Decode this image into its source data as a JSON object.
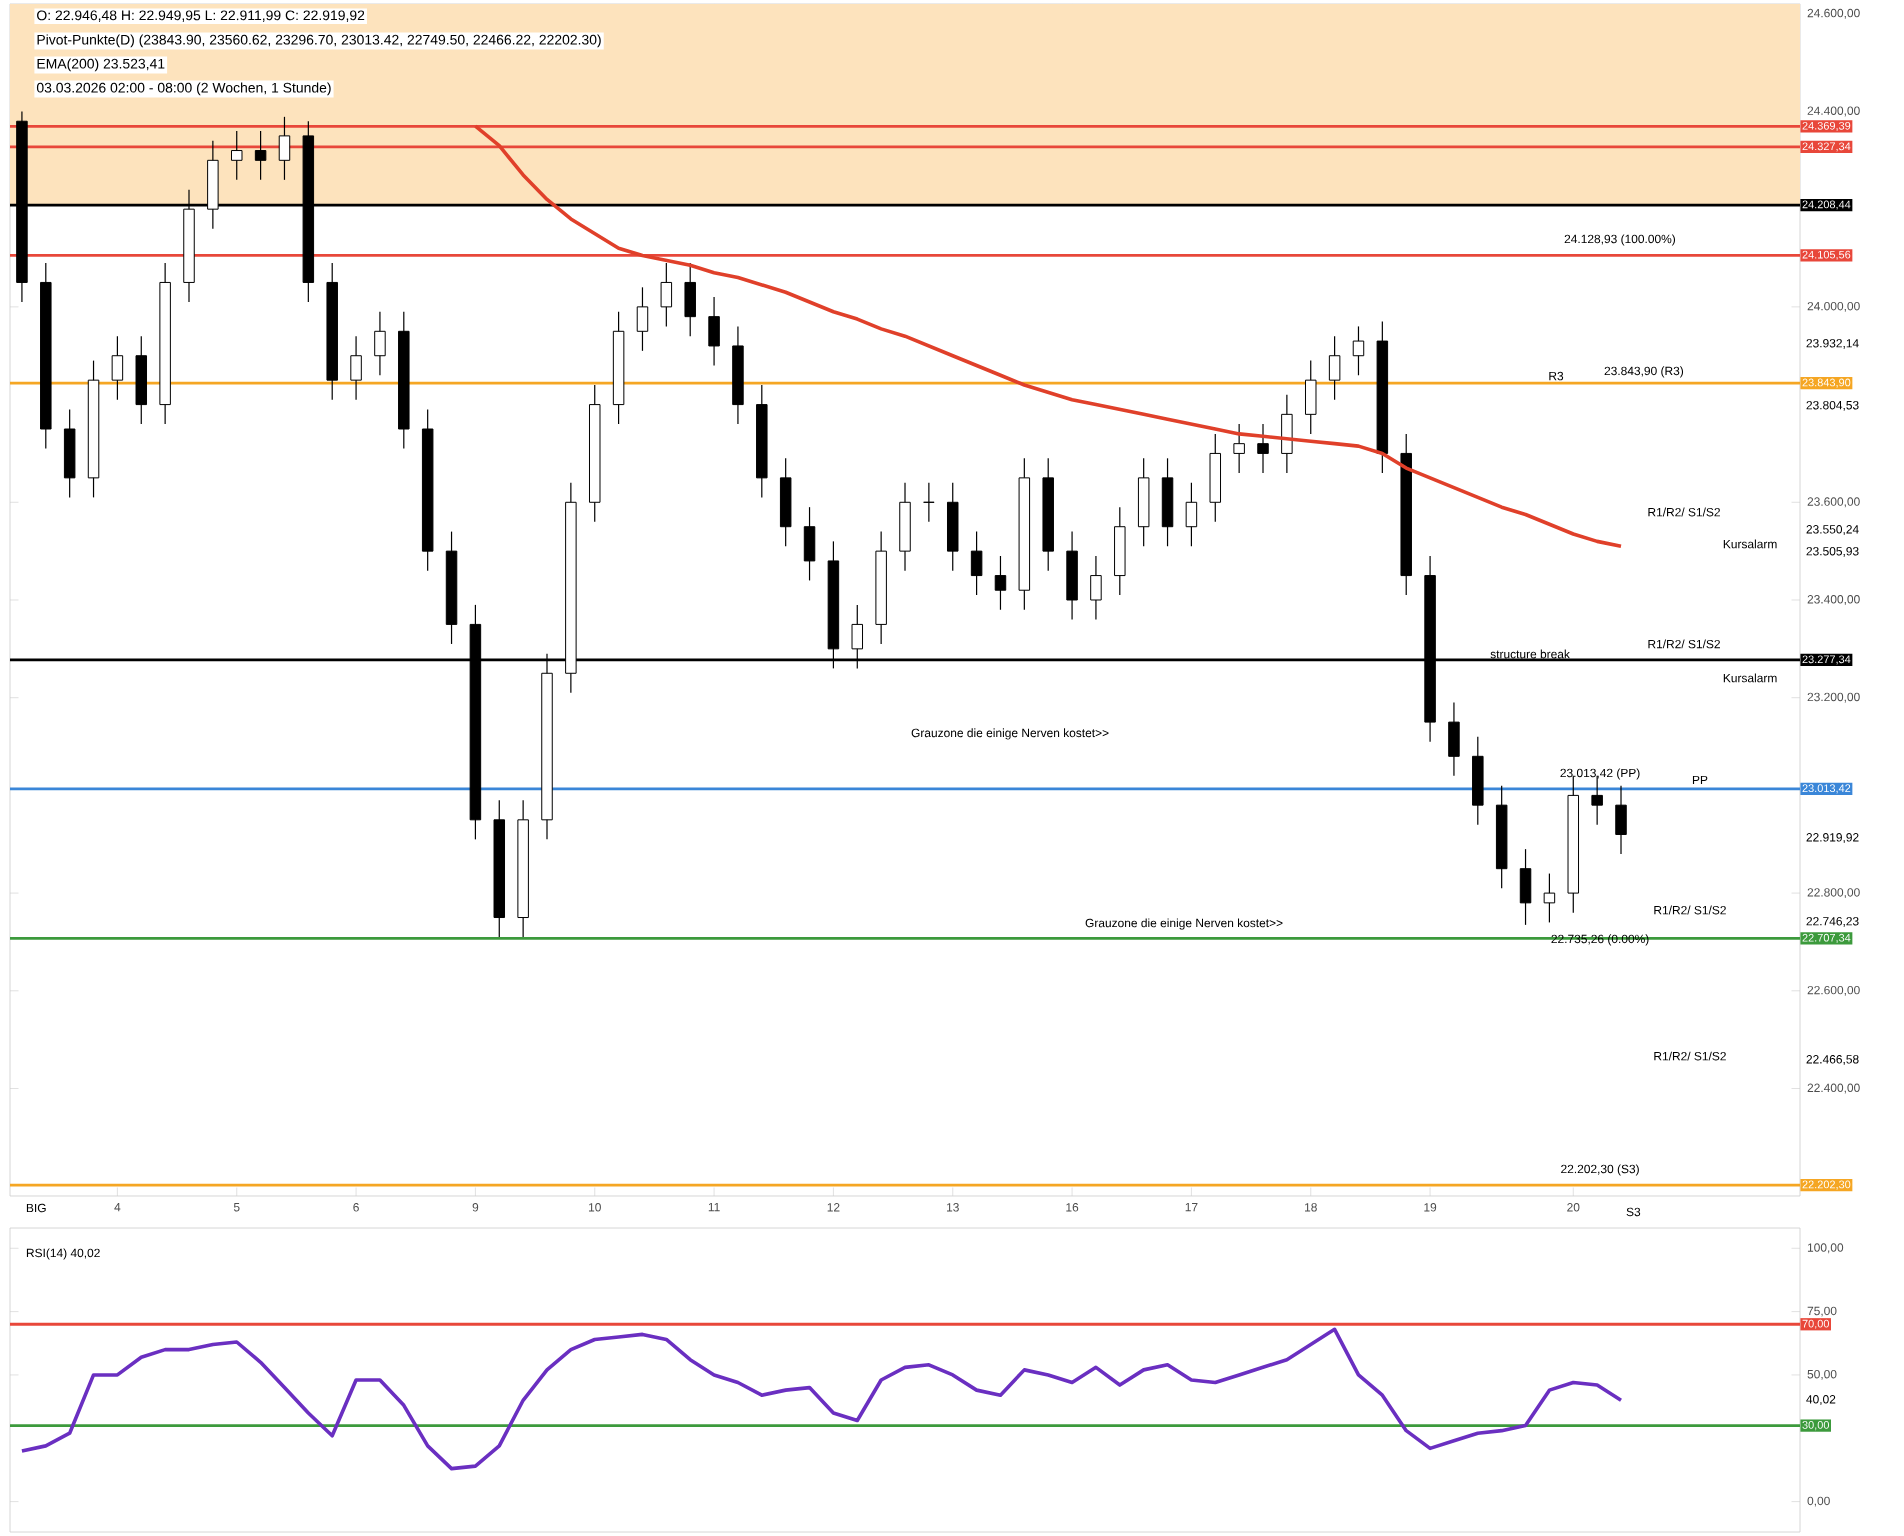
{
  "chart_data": [
    {
      "type": "candlestick",
      "ylim": [
        22180,
        24620
      ],
      "categories": [
        null,
        null,
        null,
        null,
        "4",
        null,
        null,
        null,
        null,
        "5",
        null,
        null,
        null,
        null,
        "6",
        null,
        null,
        null,
        null,
        "9",
        null,
        null,
        null,
        null,
        "10",
        null,
        null,
        null,
        null,
        "11",
        null,
        null,
        null,
        null,
        "12",
        null,
        null,
        null,
        null,
        "13",
        null,
        null,
        null,
        null,
        "16",
        null,
        null,
        null,
        null,
        "17",
        null,
        null,
        null,
        null,
        "18",
        null,
        null,
        null,
        null,
        "19",
        null,
        null,
        null,
        null,
        null,
        "20",
        null,
        null
      ],
      "yticks": [
        {
          "value": 24600,
          "label": "24.600,00"
        },
        {
          "value": 24400,
          "label": "24.400,00"
        },
        {
          "value": 24000,
          "label": "24.000,00"
        },
        {
          "value": 23600,
          "label": "23.600,00"
        },
        {
          "value": 23400,
          "label": "23.400,00"
        },
        {
          "value": 23200,
          "label": "23.200,00"
        },
        {
          "value": 22800,
          "label": "22.800,00"
        },
        {
          "value": 22600,
          "label": "22.600,00"
        },
        {
          "value": 22400,
          "label": "22.400,00"
        }
      ],
      "bands": [
        {
          "axis": "y",
          "from": 24208.44,
          "to": 24620,
          "color": "#fde3bd"
        }
      ],
      "series": [
        {
          "type": "candlestick",
          "color": "#000000",
          "ohlc": [
            [
              24380,
              24400,
              24010,
              24050
            ],
            [
              24050,
              24090,
              23710,
              23750
            ],
            [
              23750,
              23790,
              23610,
              23650
            ],
            [
              23650,
              23890,
              23610,
              23850
            ],
            [
              23850,
              23940,
              23810,
              23900
            ],
            [
              23900,
              23940,
              23760,
              23800
            ],
            [
              23800,
              24090,
              23760,
              24050
            ],
            [
              24050,
              24240,
              24010,
              24200
            ],
            [
              24200,
              24340,
              24160,
              24300
            ],
            [
              24300,
              24360,
              24260,
              24320
            ],
            [
              24320,
              24360,
              24260,
              24300
            ],
            [
              24300,
              24389,
              24260,
              24350
            ],
            [
              24350,
              24380,
              24010,
              24050
            ],
            [
              24050,
              24090,
              23810,
              23850
            ],
            [
              23850,
              23940,
              23810,
              23900
            ],
            [
              23900,
              23990,
              23860,
              23950
            ],
            [
              23950,
              23990,
              23710,
              23750
            ],
            [
              23750,
              23790,
              23460,
              23500
            ],
            [
              23500,
              23540,
              23310,
              23350
            ],
            [
              23350,
              23390,
              22910,
              22950
            ],
            [
              22950,
              22990,
              22710,
              22750
            ],
            [
              22750,
              22990,
              22710,
              22950
            ],
            [
              22950,
              23290,
              22910,
              23250
            ],
            [
              23250,
              23640,
              23210,
              23600
            ],
            [
              23600,
              23840,
              23560,
              23800
            ],
            [
              23800,
              23990,
              23760,
              23950
            ],
            [
              23950,
              24040,
              23910,
              24000
            ],
            [
              24000,
              24090,
              23960,
              24050
            ],
            [
              24050,
              24090,
              23940,
              23980
            ],
            [
              23980,
              24020,
              23880,
              23920
            ],
            [
              23920,
              23960,
              23760,
              23800
            ],
            [
              23800,
              23840,
              23610,
              23650
            ],
            [
              23650,
              23690,
              23510,
              23550
            ],
            [
              23550,
              23590,
              23440,
              23480
            ],
            [
              23480,
              23520,
              23260,
              23300
            ],
            [
              23300,
              23390,
              23260,
              23350
            ],
            [
              23350,
              23540,
              23310,
              23500
            ],
            [
              23500,
              23640,
              23460,
              23600
            ],
            [
              23600,
              23640,
              23560,
              23600
            ],
            [
              23600,
              23640,
              23460,
              23500
            ],
            [
              23500,
              23540,
              23410,
              23450
            ],
            [
              23450,
              23490,
              23380,
              23420
            ],
            [
              23420,
              23690,
              23380,
              23650
            ],
            [
              23650,
              23690,
              23460,
              23500
            ],
            [
              23500,
              23540,
              23360,
              23400
            ],
            [
              23400,
              23490,
              23360,
              23450
            ],
            [
              23450,
              23590,
              23410,
              23550
            ],
            [
              23550,
              23690,
              23510,
              23650
            ],
            [
              23650,
              23690,
              23510,
              23550
            ],
            [
              23550,
              23640,
              23510,
              23600
            ],
            [
              23600,
              23740,
              23560,
              23700
            ],
            [
              23700,
              23760,
              23660,
              23720
            ],
            [
              23720,
              23760,
              23660,
              23700
            ],
            [
              23700,
              23820,
              23660,
              23780
            ],
            [
              23780,
              23890,
              23740,
              23850
            ],
            [
              23850,
              23940,
              23810,
              23900
            ],
            [
              23900,
              23960,
              23860,
              23930
            ],
            [
              23930,
              23970,
              23660,
              23700
            ],
            [
              23700,
              23740,
              23410,
              23450
            ],
            [
              23450,
              23490,
              23110,
              23150
            ],
            [
              23150,
              23190,
              23040,
              23080
            ],
            [
              23080,
              23120,
              22940,
              22980
            ],
            [
              22980,
              23020,
              22810,
              22850
            ],
            [
              22850,
              22890,
              22735,
              22780
            ],
            [
              22780,
              22840,
              22740,
              22800
            ],
            [
              22800,
              23040,
              22760,
              23000
            ],
            [
              23000,
              23040,
              22940,
              22980
            ],
            [
              22980,
              23020,
              22880,
              22920
            ]
          ]
        },
        {
          "type": "line",
          "color": "#e0402a",
          "values": [
            null,
            null,
            null,
            null,
            null,
            null,
            null,
            null,
            null,
            null,
            null,
            null,
            null,
            null,
            null,
            null,
            null,
            null,
            null,
            24370,
            24330,
            24270,
            24220,
            24180,
            24150,
            24120,
            24105,
            24095,
            24085,
            24070,
            24060,
            24045,
            24030,
            24010,
            23990,
            23975,
            23955,
            23940,
            23920,
            23900,
            23880,
            23860,
            23840,
            23825,
            23810,
            23800,
            23790,
            23780,
            23770,
            23760,
            23750,
            23740,
            23735,
            23730,
            23725,
            23720,
            23715,
            23700,
            23670,
            23650,
            23630,
            23610,
            23590,
            23575,
            23555,
            23535,
            23520,
            23510
          ]
        }
      ],
      "ref_lines": [
        {
          "axis": "y",
          "value": 24369.39,
          "label": "24.369,39",
          "color": "#e8473a"
        },
        {
          "axis": "y",
          "value": 24327.34,
          "label": "24.327,34",
          "color": "#e8473a"
        },
        {
          "axis": "y",
          "value": 24208.44,
          "label": "24.208,44",
          "color": "#000000"
        },
        {
          "axis": "y",
          "value": 24105.56,
          "label": "24.105,56",
          "color": "#e8473a"
        },
        {
          "axis": "y",
          "value": 23843.9,
          "label": "23.843,90",
          "color": "#f5a623"
        },
        {
          "axis": "y",
          "value": 23277.34,
          "label": "23.277,34",
          "color": "#000000"
        },
        {
          "axis": "y",
          "value": 23013.42,
          "label": "23.013,42",
          "color": "#3a86d8"
        },
        {
          "axis": "y",
          "value": 22707.34,
          "label": "22.707,34",
          "color": "#3c9a3c"
        },
        {
          "axis": "y",
          "value": 22202.3,
          "label": "22.202,30",
          "color": "#f5a623"
        }
      ],
      "annotations": [
        "O: 22.946,48 H: 22.949,95 L: 22.911,99 C: 22.919,92",
        "Pivot-Punkte(D) (23843.90, 23560.62, 23296.70, 23013.42, 22749.50, 22466.22, 22202.30)",
        "EMA(200) 23.523,41",
        "03.03.2026 02:00 - 08:00 (2 Wochen, 1 Stunde)",
        "24.128,93 (100.00%)",
        "R3",
        "23.843,90 (R3)",
        "R1/R2/ S1/S2",
        "Kursalarm",
        "R1/R2/ S1/S2",
        "structure break",
        "Kursalarm",
        "Grauzone die einige Nerven kostet>>",
        "23.013,42 (PP)",
        "PP",
        "22.735,26 (0.00%)",
        "R1/R2/ S1/S2",
        "Grauzone die einige Nerven kostet>>",
        "R1/R2/ S1/S2",
        "22.202,30 (S3)",
        "S3",
        "23.932,14",
        "23.804,53",
        "23.550,24",
        "23.505,93",
        "22.919,92",
        "22.746,23",
        "22.466,58"
      ]
    },
    {
      "type": "line",
      "ylim": [
        -12,
        108
      ],
      "tick_labels": "y",
      "categories": [
        null,
        null,
        null,
        null,
        null,
        null,
        null,
        null,
        null,
        null,
        null,
        null,
        null,
        null,
        null,
        null,
        null,
        null,
        null,
        null,
        null,
        null,
        null,
        null,
        null,
        null,
        null,
        null,
        null,
        null,
        null,
        null,
        null,
        null,
        null,
        null,
        null,
        null,
        null,
        null,
        null,
        null,
        null,
        null,
        null,
        null,
        null,
        null,
        null,
        null,
        null,
        null,
        null,
        null,
        null,
        null,
        null,
        null,
        null,
        null,
        null,
        null,
        null,
        null,
        null,
        null,
        null,
        null
      ],
      "yticks": [
        {
          "value": 100,
          "label": "100,00"
        },
        {
          "value": 75,
          "label": "75,00"
        },
        {
          "value": 50,
          "label": "50,00"
        },
        {
          "value": 0,
          "label": "0,00"
        }
      ],
      "series": [
        {
          "color": "#6a2fc1",
          "values": [
            20,
            22,
            27,
            50,
            50,
            57,
            60,
            60,
            62,
            63,
            55,
            45,
            35,
            26,
            48,
            48,
            38,
            22,
            13,
            14,
            22,
            40,
            52,
            60,
            64,
            65,
            66,
            64,
            56,
            50,
            47,
            42,
            44,
            45,
            35,
            32,
            48,
            53,
            54,
            50,
            44,
            42,
            52,
            50,
            47,
            53,
            46,
            52,
            54,
            48,
            47,
            50,
            53,
            56,
            62,
            68,
            50,
            42,
            28,
            21,
            24,
            27,
            28,
            30,
            44,
            47,
            46,
            40
          ]
        }
      ],
      "ref_lines": [
        {
          "axis": "y",
          "value": 70,
          "label": "70,00",
          "color": "#e8473a"
        },
        {
          "axis": "y",
          "value": 30,
          "label": "30,00",
          "color": "#3c9a3c"
        }
      ],
      "annotations": [
        "BIG",
        "RSI(14) 40,02",
        "40,02"
      ]
    }
  ]
}
